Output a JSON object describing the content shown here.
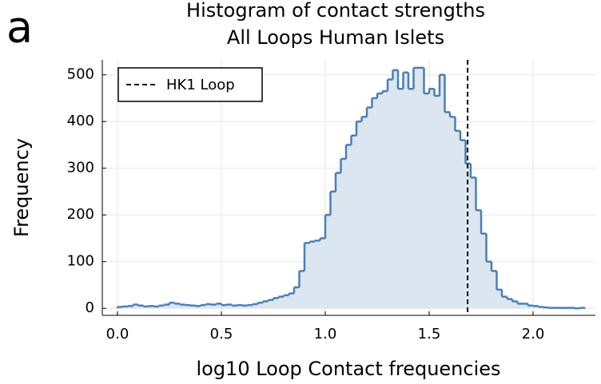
{
  "panel_label": "a",
  "chart_data": {
    "type": "histogram",
    "title": "Histogram of contact strengths",
    "subtitle": "All Loops Human Islets",
    "x_label": "log10 Loop Contact frequencies",
    "y_label": "Frequency",
    "bins": [
      0,
      0.025,
      0.05,
      0.075,
      0.1,
      0.125,
      0.15,
      0.175,
      0.2,
      0.225,
      0.25,
      0.275,
      0.3,
      0.325,
      0.35,
      0.375,
      0.4,
      0.425,
      0.45,
      0.475,
      0.5,
      0.525,
      0.55,
      0.575,
      0.6,
      0.625,
      0.65,
      0.675,
      0.7,
      0.725,
      0.75,
      0.775,
      0.8,
      0.825,
      0.85,
      0.875,
      0.9,
      0.925,
      0.95,
      0.975,
      1.0,
      1.025,
      1.05,
      1.075,
      1.1,
      1.125,
      1.15,
      1.175,
      1.2,
      1.225,
      1.25,
      1.275,
      1.3,
      1.325,
      1.35,
      1.375,
      1.4,
      1.425,
      1.45,
      1.475,
      1.5,
      1.525,
      1.55,
      1.575,
      1.6,
      1.625,
      1.65,
      1.675,
      1.7,
      1.725,
      1.75,
      1.775,
      1.8,
      1.825,
      1.85,
      1.875,
      1.9,
      1.925,
      1.95,
      1.975,
      2.0,
      2.025,
      2.05,
      2.075,
      2.1,
      2.125,
      2.15,
      2.175,
      2.2,
      2.225,
      2.25
    ],
    "counts": [
      3,
      4,
      5,
      8,
      6,
      4,
      5,
      4,
      6,
      8,
      12,
      10,
      8,
      7,
      6,
      5,
      7,
      9,
      8,
      10,
      7,
      8,
      6,
      7,
      6,
      7,
      9,
      12,
      15,
      18,
      22,
      25,
      28,
      32,
      45,
      80,
      140,
      143,
      145,
      150,
      200,
      250,
      290,
      320,
      350,
      370,
      400,
      410,
      430,
      450,
      460,
      465,
      490,
      510,
      470,
      505,
      470,
      515,
      515,
      460,
      470,
      455,
      500,
      420,
      410,
      380,
      360,
      310,
      280,
      210,
      160,
      100,
      80,
      40,
      25,
      20,
      15,
      10,
      10,
      6,
      5,
      3,
      2,
      1,
      1,
      1,
      1,
      1,
      0,
      1
    ],
    "color": "#4a7fb5",
    "fill_color": "#dce6f0",
    "vline": {
      "name": "HK1 Loop",
      "x": 1.685,
      "color": "#000000"
    },
    "xlim": [
      -0.073,
      2.3
    ],
    "ylim": [
      -15,
      532
    ],
    "xticks": [
      {
        "value": 0,
        "label": "0.0"
      },
      0.5,
      {
        "value": 1,
        "label": "1.0"
      },
      1.5,
      {
        "value": 2,
        "label": "2.0"
      }
    ],
    "yticks": [
      0,
      100,
      200,
      300,
      400,
      500
    ],
    "grid": true,
    "legend": "top-left"
  }
}
